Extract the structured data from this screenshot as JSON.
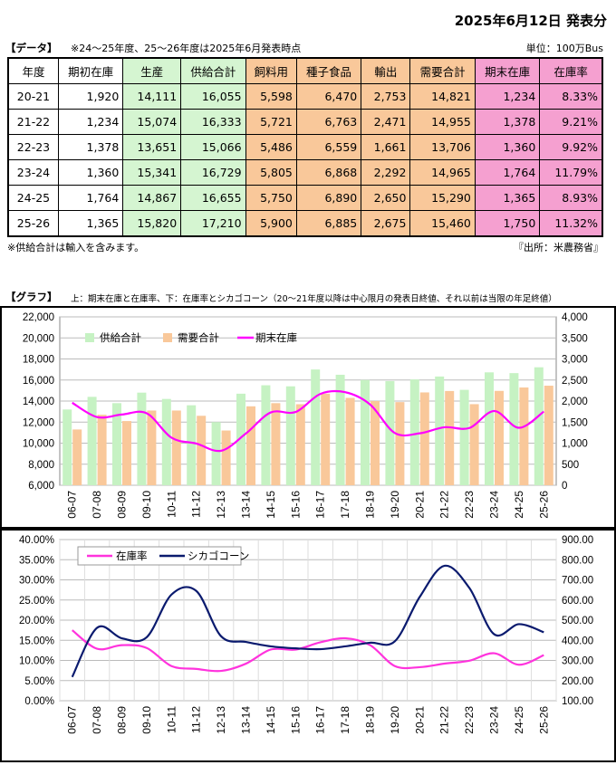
{
  "header": {
    "date": "2025年6月12日 発表分",
    "data_heading": "【データ】",
    "data_note": "※24～25年度、25～26年度は2025年6月発表時点",
    "unit": "単位：100万Bus"
  },
  "table": {
    "columns": [
      "年度",
      "期初在庫",
      "生産",
      "供給合計",
      "飼料用",
      "種子食品",
      "輸出",
      "需要合計",
      "期末在庫",
      "在庫率"
    ],
    "rows": [
      [
        "20-21",
        "1,920",
        "14,111",
        "16,055",
        "5,598",
        "6,470",
        "2,753",
        "14,821",
        "1,234",
        "8.33%"
      ],
      [
        "21-22",
        "1,234",
        "15,074",
        "16,333",
        "5,721",
        "6,763",
        "2,471",
        "14,955",
        "1,378",
        "9.21%"
      ],
      [
        "22-23",
        "1,378",
        "13,651",
        "15,066",
        "5,486",
        "6,559",
        "1,661",
        "13,706",
        "1,360",
        "9.92%"
      ],
      [
        "23-24",
        "1,360",
        "15,341",
        "16,729",
        "5,805",
        "6,868",
        "2,292",
        "14,965",
        "1,764",
        "11.79%"
      ],
      [
        "24-25",
        "1,764",
        "14,867",
        "16,655",
        "5,750",
        "6,890",
        "2,650",
        "15,290",
        "1,365",
        "8.93%"
      ],
      [
        "25-26",
        "1,365",
        "15,820",
        "17,210",
        "5,900",
        "6,885",
        "2,675",
        "15,460",
        "1,750",
        "11.32%"
      ]
    ]
  },
  "footer": {
    "note": "※供給合計は輸入を含みます。",
    "source": "『出所：米農務省』"
  },
  "graph": {
    "heading": "【グラフ】",
    "note": "上：期末在庫と在庫率、下：在庫率とシカゴコーン（20～21年度以降は中心限月の発表日終値、それ以前は当限の年足終値）"
  },
  "colors": {
    "supply": "#c6f2c3",
    "demand": "#f9c89a",
    "ending_stock": "#ff00ff",
    "stock_ratio": "#ff33dd",
    "chicago": "#0a1a6e"
  },
  "chart_data": [
    {
      "type": "bar",
      "categories": [
        "06-07",
        "07-08",
        "08-09",
        "09-10",
        "10-11",
        "11-12",
        "12-13",
        "13-14",
        "14-15",
        "15-16",
        "16-17",
        "17-18",
        "18-19",
        "19-20",
        "20-21",
        "21-22",
        "22-23",
        "23-24",
        "24-25",
        "25-26"
      ],
      "series": [
        {
          "name": "供給合計",
          "axis": "left",
          "values": [
            13200,
            14400,
            13800,
            14800,
            14200,
            13600,
            12000,
            14700,
            15500,
            15400,
            17000,
            16500,
            16000,
            15900,
            16055,
            16333,
            15066,
            16729,
            16655,
            17210
          ]
        },
        {
          "name": "需要合計",
          "axis": "left",
          "values": [
            11300,
            12700,
            12100,
            13100,
            13100,
            12600,
            11200,
            13500,
            13800,
            13700,
            14700,
            14300,
            14000,
            13900,
            14821,
            14955,
            13706,
            14965,
            15290,
            15460
          ]
        },
        {
          "name": "期末在庫",
          "axis": "right",
          "type": "line",
          "values": [
            1960,
            1620,
            1680,
            1710,
            1130,
            990,
            820,
            1230,
            1730,
            1740,
            2170,
            2210,
            1920,
            1240,
            1234,
            1378,
            1360,
            1764,
            1365,
            1750
          ]
        }
      ],
      "ylim_left": [
        6000,
        22000
      ],
      "yticks_left": [
        "6,000",
        "8,000",
        "10,000",
        "12,000",
        "14,000",
        "16,000",
        "18,000",
        "20,000",
        "22,000"
      ],
      "ylim_right": [
        0,
        4000
      ],
      "yticks_right": [
        "0",
        "500",
        "1,000",
        "1,500",
        "2,000",
        "2,500",
        "3,000",
        "3,500",
        "4,000"
      ],
      "legend": "top-left",
      "grid": true
    },
    {
      "type": "line",
      "categories": [
        "06-07",
        "07-08",
        "08-09",
        "09-10",
        "10-11",
        "11-12",
        "12-13",
        "13-14",
        "14-15",
        "15-16",
        "16-17",
        "17-18",
        "18-19",
        "19-20",
        "20-21",
        "21-22",
        "22-23",
        "23-24",
        "24-25",
        "25-26"
      ],
      "series": [
        {
          "name": "在庫率",
          "axis": "left",
          "values": [
            17.5,
            12.9,
            13.8,
            13.1,
            8.6,
            7.9,
            7.4,
            9.2,
            12.7,
            12.7,
            14.5,
            15.5,
            13.8,
            8.6,
            8.33,
            9.21,
            9.92,
            11.79,
            8.93,
            11.32
          ]
        },
        {
          "name": "シカゴコーン",
          "axis": "right",
          "values": [
            218,
            462,
            410,
            415,
            627,
            645,
            420,
            392,
            370,
            360,
            356,
            370,
            388,
            395,
            615,
            770,
            660,
            430,
            480,
            440
          ]
        }
      ],
      "ylim_left": [
        0,
        40
      ],
      "yticks_left": [
        "0.00%",
        "5.00%",
        "10.00%",
        "15.00%",
        "20.00%",
        "25.00%",
        "30.00%",
        "35.00%",
        "40.00%"
      ],
      "ylim_right": [
        100,
        900
      ],
      "yticks_right": [
        "100.00",
        "200.00",
        "300.00",
        "400.00",
        "500.00",
        "600.00",
        "700.00",
        "800.00",
        "900.00"
      ],
      "legend": "top-left",
      "grid": true
    }
  ]
}
